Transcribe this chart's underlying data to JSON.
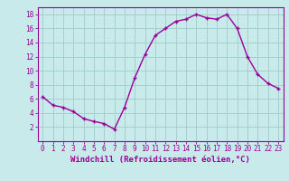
{
  "x": [
    0,
    1,
    2,
    3,
    4,
    5,
    6,
    7,
    8,
    9,
    10,
    11,
    12,
    13,
    14,
    15,
    16,
    17,
    18,
    19,
    20,
    21,
    22,
    23
  ],
  "y": [
    6.3,
    5.1,
    4.8,
    4.2,
    3.2,
    2.8,
    2.5,
    1.7,
    4.8,
    9.0,
    12.3,
    15.0,
    16.0,
    17.0,
    17.3,
    18.0,
    17.5,
    17.3,
    18.0,
    16.0,
    12.0,
    9.5,
    8.2,
    7.5
  ],
  "line_color": "#990099",
  "marker": "+",
  "bg_color": "#c8eaea",
  "grid_color": "#a0cccc",
  "xlabel": "Windchill (Refroidissement éolien,°C)",
  "xlim": [
    -0.5,
    23.5
  ],
  "ylim": [
    0,
    19
  ],
  "yticks": [
    2,
    4,
    6,
    8,
    10,
    12,
    14,
    16,
    18
  ],
  "xticks": [
    0,
    1,
    2,
    3,
    4,
    5,
    6,
    7,
    8,
    9,
    10,
    11,
    12,
    13,
    14,
    15,
    16,
    17,
    18,
    19,
    20,
    21,
    22,
    23
  ],
  "xlabel_fontsize": 6.5,
  "tick_fontsize": 5.5,
  "line_width": 1.0,
  "marker_size": 3.5
}
